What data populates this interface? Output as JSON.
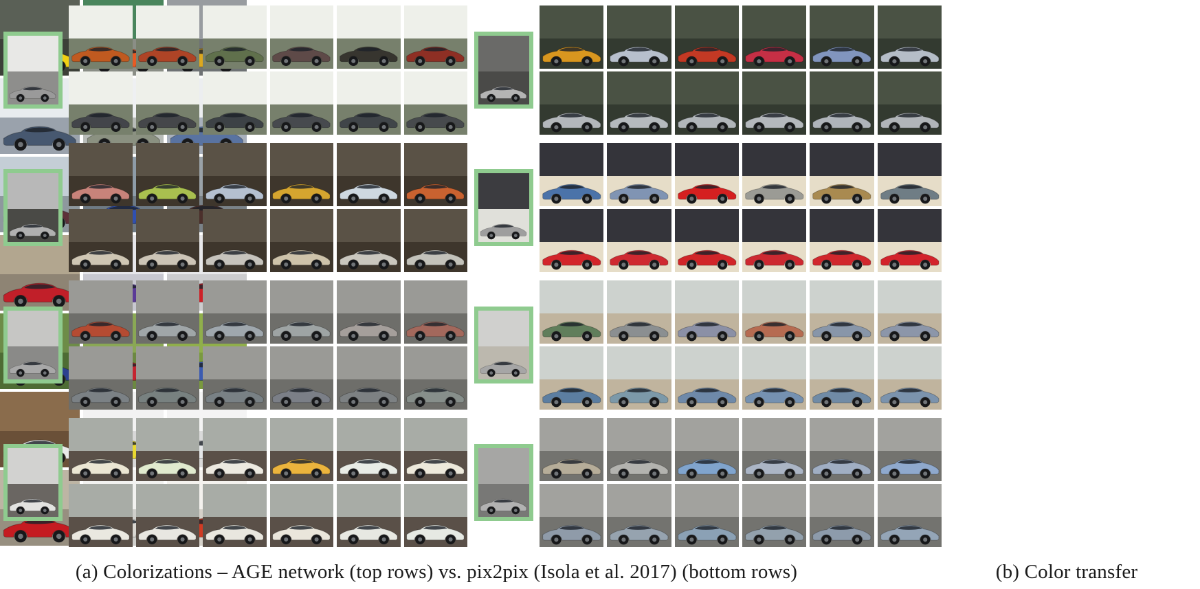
{
  "captions": {
    "a": "(a) Colorizations – AGE network (top rows) vs. pix2pix (Isola et al. 2017) (bottom rows)",
    "b": "(b) Color transfer"
  },
  "styles": {
    "input_border_color": "#8fcb8f",
    "page_bg": "#ffffff",
    "caption_color": "#1b1b1b"
  },
  "left_panel": {
    "groups": [
      {
        "subject": "scissor-door-coupe-forest",
        "input": {
          "car": "#9a9a9a",
          "bg": [
            "#e8e8e6",
            "#8e8e8c"
          ]
        },
        "bg": [
          "#eef0ea",
          "#77806c"
        ],
        "age_row": [
          "#c05a20",
          "#ae4426",
          "#60704c",
          "#5e4a48",
          "#37352f",
          "#8e2f24"
        ],
        "pix2pix_row": [
          "#43454a",
          "#45474a",
          "#3d4246",
          "#474a4e",
          "#404549",
          "#474a4d"
        ]
      },
      {
        "subject": "sport-coupe-mountain-road",
        "input": {
          "car": "#b0b0b0",
          "bg": [
            "#b8b8b8",
            "#4a4a46"
          ]
        },
        "bg": [
          "#5a5246",
          "#3e362c"
        ],
        "age_row": [
          "#c8837a",
          "#a9c04f",
          "#b4c0d0",
          "#d5a52f",
          "#ced8e0",
          "#c96230"
        ],
        "pix2pix_row": [
          "#cfc6b3",
          "#ccc4b6",
          "#c6c3bc",
          "#cec3aa",
          "#cac7be",
          "#c3c2ba"
        ]
      },
      {
        "subject": "coupe-front-view-gray-road",
        "input": {
          "car": "#a8a8a8",
          "bg": [
            "#c6c6c4",
            "#8a8a88"
          ]
        },
        "bg": [
          "#9a9a96",
          "#6e6e6a"
        ],
        "age_row": [
          "#b54b32",
          "#a0a6a8",
          "#9fa7ad",
          "#9ea4a4",
          "#a59f9b",
          "#a3685c"
        ],
        "pix2pix_row": [
          "#7b8185",
          "#788180",
          "#798185",
          "#7b7f87",
          "#7d8183",
          "#878f8b"
        ]
      },
      {
        "subject": "white-hatchback",
        "input": {
          "car": "#e2e2e0",
          "bg": [
            "#d2d2d0",
            "#6a6662"
          ]
        },
        "bg": [
          "#a8aca6",
          "#5a5048"
        ],
        "age_row": [
          "#ebe6d3",
          "#e0eace",
          "#ece9e0",
          "#ebb43d",
          "#e8ece6",
          "#ede9db"
        ],
        "pix2pix_row": [
          "#eae8e0",
          "#e8e7e1",
          "#e9e7df",
          "#eae6db",
          "#e7e8e2",
          "#e6e9e3"
        ]
      }
    ]
  },
  "middle_panel": {
    "groups": [
      {
        "subject": "sedan-dark-forest",
        "input": {
          "car": "#b4b4b4",
          "bg": [
            "#6a6a68",
            "#4a4a48"
          ]
        },
        "bg": [
          "#4a5244",
          "#333a30"
        ],
        "age_row": [
          "#d8961f",
          "#b7bfcc",
          "#c33924",
          "#c62f45",
          "#8195be",
          "#b5bdc7"
        ],
        "pix2pix_row": [
          "#b3b7bb",
          "#b5babd",
          "#b1b6ba",
          "#b4b8bc",
          "#afb4ba",
          "#b1b5b9"
        ]
      },
      {
        "subject": "supercar-night",
        "input": {
          "car": "#9e9e9e",
          "bg": [
            "#3c3c40",
            "#e0e0da"
          ]
        },
        "bg": [
          "#34343a",
          "#e6ddc8"
        ],
        "age_row": [
          "#4b73a9",
          "#8094b3",
          "#d52020",
          "#9b9b95",
          "#a98a50",
          "#6f7d85"
        ],
        "pix2pix_row": [
          "#d3252b",
          "#cf2931",
          "#d12529",
          "#cd2931",
          "#d1272d",
          "#d3232b"
        ]
      },
      {
        "subject": "pickup-truck-lot",
        "input": {
          "car": "#a6a6a6",
          "bg": [
            "#d0d0ce",
            "#bcb8ae"
          ]
        },
        "bg": [
          "#cdd2ce",
          "#c0b49e"
        ],
        "age_row": [
          "#607e5b",
          "#8b8f91",
          "#8b90a6",
          "#b66b51",
          "#8896a9",
          "#8c96a9"
        ],
        "pix2pix_row": [
          "#5c7ea1",
          "#7c99a9",
          "#6e89a9",
          "#7591b1",
          "#708ba6",
          "#7b93ad"
        ]
      },
      {
        "subject": "sedan-parking-lot",
        "input": {
          "car": "#b2b2b2",
          "bg": [
            "#a6a6a4",
            "#787876"
          ]
        },
        "bg": [
          "#a2a29e",
          "#73736f"
        ],
        "age_row": [
          "#b6ad99",
          "#b3b3af",
          "#80a4cd",
          "#abb5c5",
          "#a0aec3",
          "#8fa9cd"
        ],
        "pix2pix_row": [
          "#8f9ba9",
          "#96a3af",
          "#8ba1b5",
          "#93a1ad",
          "#8d9bab",
          "#94a5b7"
        ]
      }
    ]
  },
  "right_panel": {
    "rows": [
      {
        "cells": [
          {
            "car": "#f1d013",
            "bg": [
              "#5a6056",
              "#3c4038"
            ]
          },
          {
            "car": "#e65b25",
            "bg": [
              "#49855c",
              "#8a8e86"
            ]
          },
          {
            "car": "#dca81f",
            "bg": [
              "#989ca0",
              "#6e7274"
            ]
          }
        ]
      },
      {
        "cells": [
          {
            "car": "#475870",
            "bg": [
              "#e8ecef",
              "#9aa2ac"
            ]
          },
          {
            "car": "#8b9181",
            "bg": [
              "#eef0f2",
              "#b8bcb8"
            ]
          },
          {
            "car": "#5973a1",
            "bg": [
              "#eceef0",
              "#a8b0bc"
            ]
          }
        ]
      },
      {
        "cells": [
          {
            "car": "#5d3139",
            "bg": [
              "#c4ced6",
              "#8e989e"
            ]
          },
          {
            "car": "#3050af",
            "bg": [
              "#8e9ca8",
              "#6e7a84"
            ]
          },
          {
            "car": "#4b2f2b",
            "bg": [
              "#9aa2a8",
              "#7a8288"
            ]
          }
        ]
      },
      {
        "cells": [
          {
            "car": "#c11f29",
            "bg": [
              "#b2a68f",
              "#8e8474"
            ]
          },
          {
            "car": "#5b3b97",
            "bg": [
              "#e6e6ea",
              "#c8c8d0"
            ]
          },
          {
            "car": "#cd2127",
            "bg": [
              "#e8e8ea",
              "#ccccce"
            ]
          }
        ]
      },
      {
        "cells": [
          {
            "car": "#2b408f",
            "bg": [
              "#6d8c48",
              "#4e6c34"
            ]
          },
          {
            "car": "#c52531",
            "bg": [
              "#8aa855",
              "#6c8842"
            ]
          },
          {
            "car": "#3b5bb1",
            "bg": [
              "#90af4b",
              "#7a9a3e"
            ]
          }
        ]
      },
      {
        "cells": [
          {
            "car": "#e9e9e9",
            "bg": [
              "#8a6c4c",
              "#6a5038"
            ]
          },
          {
            "car": "#e9d931",
            "bg": [
              "#f2f2f2",
              "#d8d8d8"
            ]
          },
          {
            "car": "#e5e7e9",
            "bg": [
              "#f4f4f4",
              "#dadada"
            ]
          }
        ]
      },
      {
        "cells": [
          {
            "car": "#c51b21",
            "bg": [
              "#bdb5a4",
              "#978f80"
            ]
          },
          {
            "car": "#d9d7d1",
            "bg": [
              "#f2f2f0",
              "#cfcfcb"
            ]
          },
          {
            "car": "#d13b23",
            "bg": [
              "#f4f2ee",
              "#d6d2ca"
            ]
          }
        ]
      }
    ]
  }
}
